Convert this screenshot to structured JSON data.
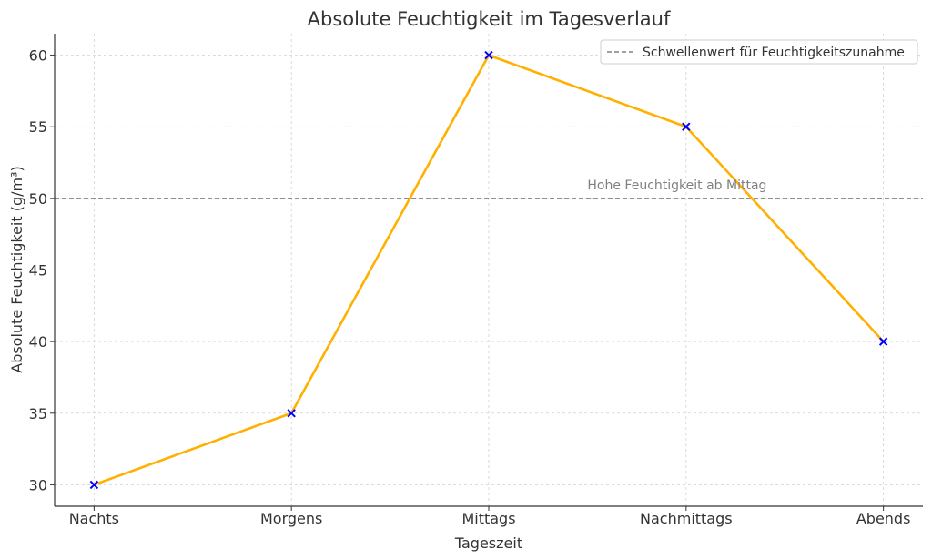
{
  "chart_data": {
    "type": "line",
    "title": "Absolute Feuchtigkeit im Tagesverlauf",
    "xlabel": "Tageszeit",
    "ylabel": "Absolute Feuchtigkeit (g/m³)",
    "categories": [
      "Nachts",
      "Morgens",
      "Mittags",
      "Nachmittags",
      "Abends"
    ],
    "series": [
      {
        "values": [
          30,
          35,
          60,
          55,
          40
        ],
        "color": "#FFB000",
        "marker": "x",
        "marker_color": "#0000FF"
      }
    ],
    "threshold": {
      "value": 50,
      "label": "Schwellenwert für Feuchtigkeitszunahme",
      "color": "#808080",
      "style": "dashed"
    },
    "annotation": {
      "text": "Hohe Feuchtigkeit ab Mittag",
      "x": 2.5,
      "y": 50.5,
      "color": "#808080"
    },
    "yticks": [
      30,
      35,
      40,
      45,
      50,
      55,
      60
    ],
    "ylim": [
      28.5,
      61.5
    ],
    "xlim": [
      -0.2,
      4.2
    ],
    "grid": true,
    "legend_position": "top-right"
  }
}
